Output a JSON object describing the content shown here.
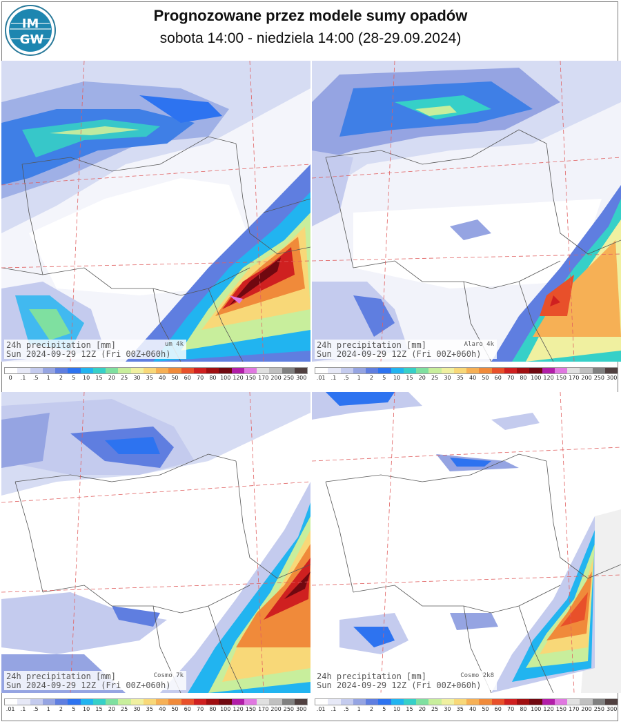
{
  "header": {
    "logo_text_top": "IM",
    "logo_text_bottom": "GW",
    "title": "Prognozowane przez modele sumy opadów",
    "subtitle": "sobota 14:00 - niedziela 14:00 (28-29.09.2024)"
  },
  "panels": [
    {
      "id": "um",
      "caption_line1": "24h precipitation  [mm]",
      "caption_line2": "Sun 2024-09-29 12Z (Fri 00Z+060h)",
      "model": "um 4k"
    },
    {
      "id": "alaro",
      "caption_line1": "24h precipitation  [mm]",
      "caption_line2": "Sun 2024-09-29 12Z (Fri 00Z+060h)",
      "model": "Alaro 4k"
    },
    {
      "id": "cosmo7",
      "caption_line1": "24h precipitation  [mm]",
      "caption_line2": "Sun 2024-09-29 12Z (Fri 00Z+060h)",
      "model": "Cosmo 7k"
    },
    {
      "id": "cosmo2",
      "caption_line1": "24h precipitation  [mm]",
      "caption_line2": "Sun 2024-09-29 12Z (Fri 00Z+060h)",
      "model": "Cosmo 2k8"
    }
  ],
  "legend_top_left_labels": [
    "0",
    ".1",
    ".5",
    "1",
    "2",
    "5",
    "10",
    "15",
    "20",
    "25",
    "30",
    "35",
    "40",
    "50",
    "60",
    "70",
    "80",
    "100",
    "120",
    "150",
    "170",
    "200",
    "250",
    "300"
  ],
  "legend_other_labels": [
    ".01",
    ".1",
    ".5",
    "1",
    "2",
    "5",
    "10",
    "15",
    "20",
    "25",
    "30",
    "35",
    "40",
    "50",
    "60",
    "70",
    "80",
    "100",
    "120",
    "150",
    "170",
    "200",
    "250",
    "300"
  ],
  "legend_colors": [
    "#ffffff",
    "#e6e8f6",
    "#c4cbee",
    "#95a4e2",
    "#5f7ee0",
    "#2d73f0",
    "#21b4f0",
    "#36d0c8",
    "#7fe0a0",
    "#c8ee9c",
    "#f0f0a0",
    "#f8d878",
    "#f6b055",
    "#f08a3a",
    "#e8502a",
    "#cf2020",
    "#a00e10",
    "#700810",
    "#b21ea8",
    "#e078e0",
    "#e0e0e0",
    "#c0c0c0",
    "#808080",
    "#504040"
  ]
}
